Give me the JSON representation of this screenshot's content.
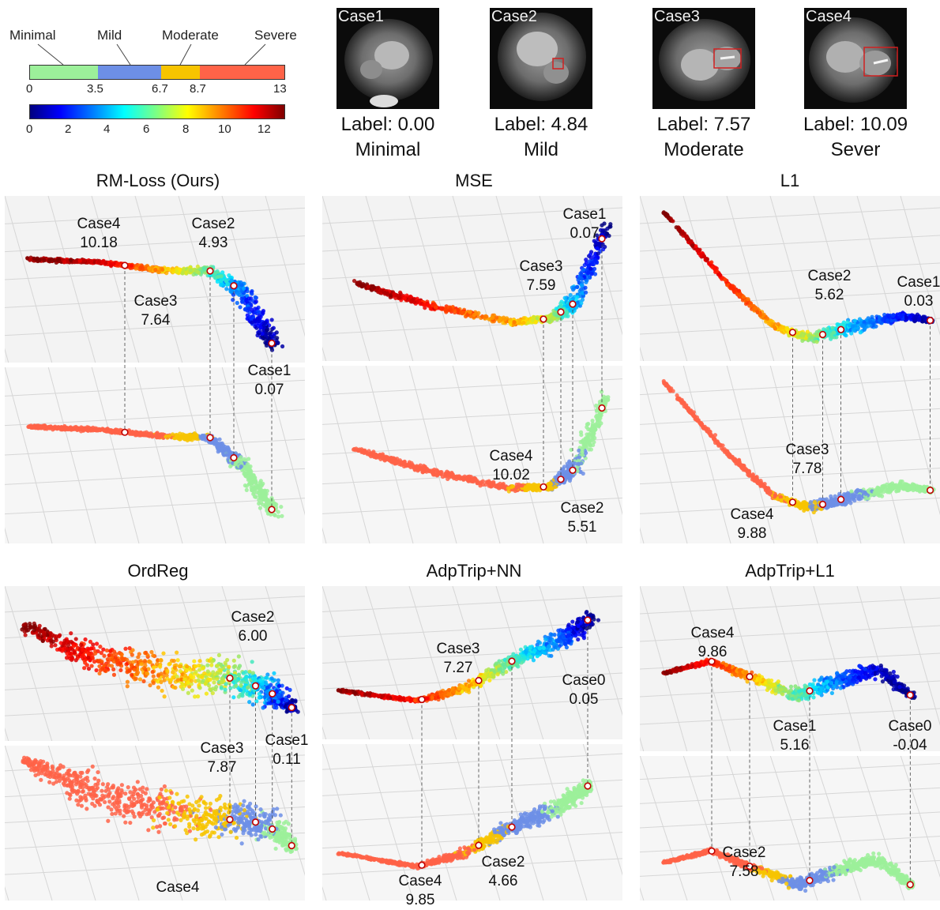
{
  "legend": {
    "categories": [
      "Minimal",
      "Mild",
      "Moderate",
      "Severe"
    ],
    "category_colors": [
      "#9cf09a",
      "#6d8fe6",
      "#f7c400",
      "#ff6348"
    ],
    "category_ticks": [
      "0",
      "3.5",
      "6.7",
      "8.7",
      "13"
    ],
    "colormap": "jet",
    "colormap_ticks": [
      "0",
      "2",
      "4",
      "6",
      "8",
      "10",
      "12"
    ]
  },
  "cases": [
    {
      "name": "Case1",
      "label": "Label: 0.00",
      "severity": "Minimal"
    },
    {
      "name": "Case2",
      "label": "Label: 4.84",
      "severity": "Mild"
    },
    {
      "name": "Case3",
      "label": "Label: 7.57",
      "severity": "Moderate"
    },
    {
      "name": "Case4",
      "label": "Label: 10.09",
      "severity": "Sever"
    }
  ],
  "panels": [
    {
      "title": "RM-Loss (Ours)",
      "annotations": [
        {
          "name": "Case4",
          "value": "10.18"
        },
        {
          "name": "Case2",
          "value": "4.93"
        },
        {
          "name": "Case3",
          "value": "7.64"
        },
        {
          "name": "Case1",
          "value": "0.07"
        }
      ]
    },
    {
      "title": "MSE",
      "annotations": [
        {
          "name": "Case1",
          "value": "0.07"
        },
        {
          "name": "Case3",
          "value": "7.59"
        },
        {
          "name": "Case4",
          "value": "10.02"
        },
        {
          "name": "Case2",
          "value": "5.51"
        }
      ]
    },
    {
      "title": "L1",
      "annotations": [
        {
          "name": "Case2",
          "value": "5.62"
        },
        {
          "name": "Case1",
          "value": "0.03"
        },
        {
          "name": "Case3",
          "value": "7.78"
        },
        {
          "name": "Case4",
          "value": "9.88"
        }
      ]
    },
    {
      "title": "OrdReg",
      "annotations": [
        {
          "name": "Case2",
          "value": "6.00"
        },
        {
          "name": "Case3",
          "value": "7.87"
        },
        {
          "name": "Case1",
          "value": "0.11"
        },
        {
          "name": "Case4",
          "value": ""
        }
      ]
    },
    {
      "title": "AdpTrip+NN",
      "annotations": [
        {
          "name": "Case3",
          "value": "7.27"
        },
        {
          "name": "Case0",
          "value": "0.05"
        },
        {
          "name": "Case2",
          "value": "4.66"
        },
        {
          "name": "Case4",
          "value": "9.85"
        }
      ]
    },
    {
      "title": "AdpTrip+L1",
      "annotations": [
        {
          "name": "Case4",
          "value": "9.86"
        },
        {
          "name": "Case1",
          "value": "5.16"
        },
        {
          "name": "Case0",
          "value": "-0.04"
        },
        {
          "name": "Case2",
          "value": "7.58"
        }
      ]
    }
  ]
}
